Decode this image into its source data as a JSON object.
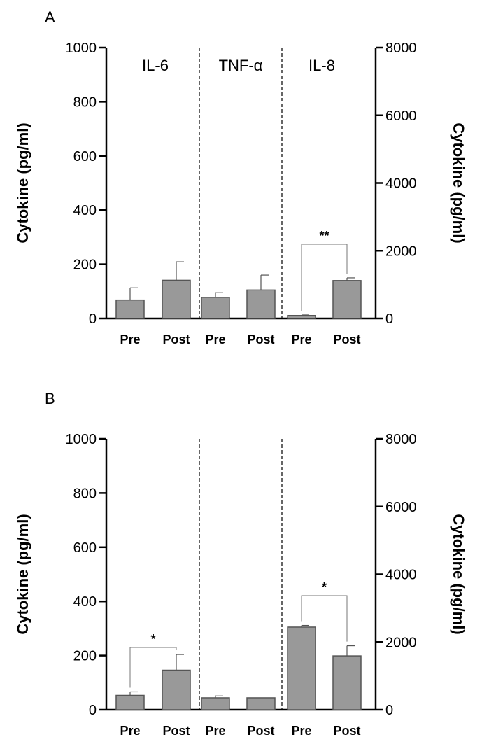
{
  "chart_data": [
    {
      "type": "bar",
      "panel_label": "A",
      "groups": [
        "IL-6",
        "TNF-α",
        "IL-8"
      ],
      "categories": [
        "Pre",
        "Post",
        "Pre",
        "Post",
        "Pre",
        "Post"
      ],
      "series": [
        {
          "values": [
            68,
            141,
            78,
            105,
            88,
            1120
          ],
          "errors": [
            45,
            68,
            17,
            55,
            16,
            80
          ],
          "axis": [
            "left",
            "left",
            "left",
            "left",
            "right",
            "right"
          ]
        }
      ],
      "ylabel": "Cytokine (pg/ml)",
      "ylim": [
        0,
        1000
      ],
      "yticks": [
        "0",
        "200",
        "400",
        "600",
        "800",
        "1000"
      ],
      "y2label": "Cytokine (pg/ml)",
      "y2lim": [
        0,
        8000
      ],
      "y2ticks": [
        "0",
        "2000",
        "4000",
        "6000",
        "8000"
      ],
      "significance": [
        {
          "from": 4,
          "to": 5,
          "label": "**",
          "level": 2190
        }
      ]
    },
    {
      "type": "bar",
      "panel_label": "B",
      "groups": [],
      "categories": [
        "Pre",
        "Post",
        "Pre",
        "Post",
        "Pre",
        "Post"
      ],
      "series": [
        {
          "values": [
            53,
            146,
            44,
            44,
            2440,
            1590
          ],
          "errors": [
            13,
            58,
            7,
            0,
            50,
            300
          ],
          "axis": [
            "left",
            "left",
            "left",
            "left",
            "right",
            "right"
          ]
        }
      ],
      "ylabel": "Cytokine (pg/ml)",
      "ylim": [
        0,
        1000
      ],
      "yticks": [
        "0",
        "200",
        "400",
        "600",
        "800",
        "1000"
      ],
      "y2label": "Cytokine (pg/ml)",
      "y2lim": [
        0,
        8000
      ],
      "y2ticks": [
        "0",
        "2000",
        "4000",
        "6000",
        "8000"
      ],
      "significance": [
        {
          "from": 0,
          "to": 1,
          "label": "*",
          "level": 230
        },
        {
          "from": 4,
          "to": 5,
          "label": "*",
          "level": 3370
        }
      ]
    }
  ],
  "colors": {
    "bar_fill": "#999999",
    "bar_stroke": "#555555",
    "axis": "#000000",
    "divider": "#000000"
  }
}
